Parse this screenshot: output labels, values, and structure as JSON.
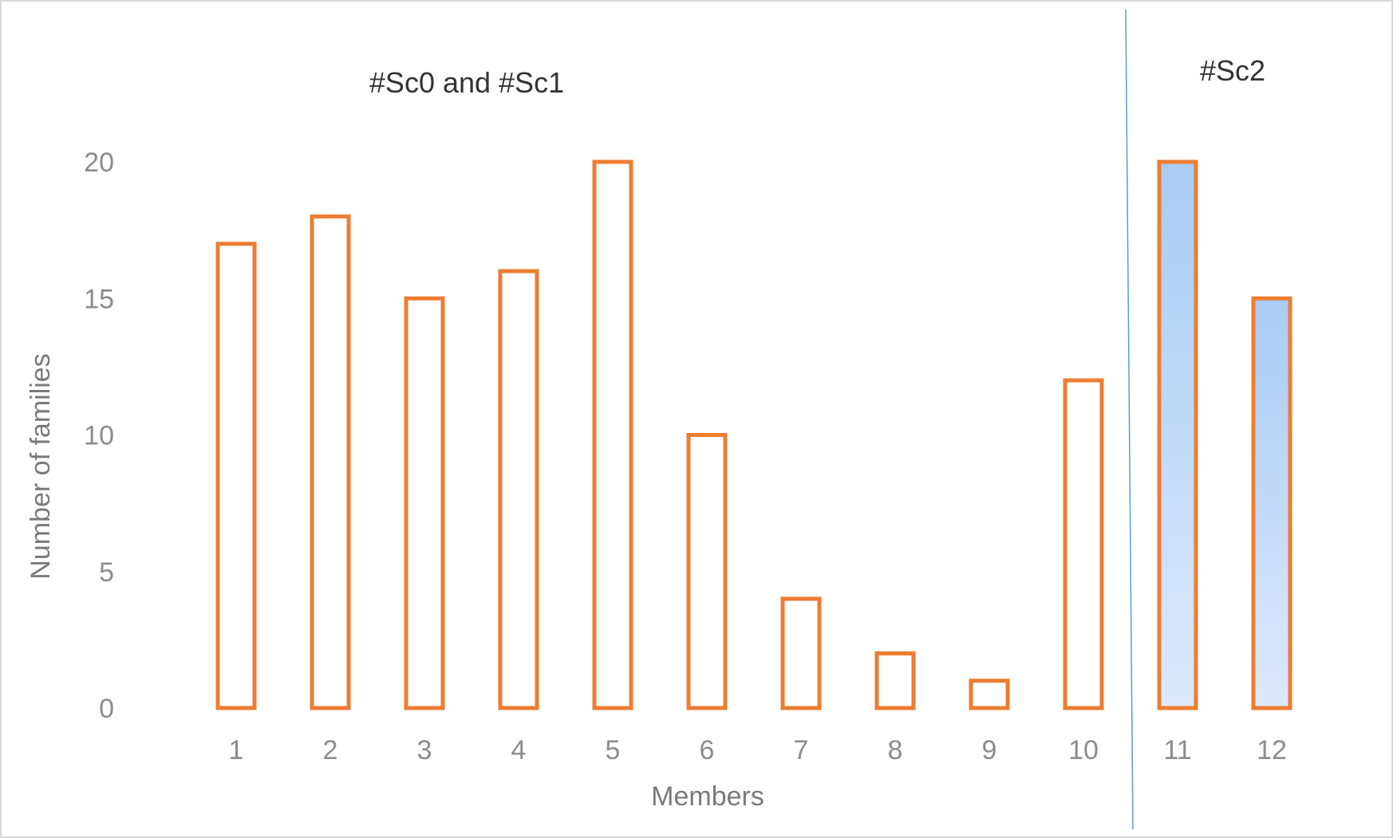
{
  "chart_data": {
    "type": "bar",
    "categories": [
      "1",
      "2",
      "3",
      "4",
      "5",
      "6",
      "7",
      "8",
      "9",
      "10",
      "11",
      "12"
    ],
    "values": [
      17,
      18,
      15,
      16,
      20,
      10,
      4,
      2,
      1,
      12,
      20,
      15
    ],
    "xlabel": "Members",
    "ylabel": "Number of families",
    "ylim": [
      0,
      20
    ],
    "yticks": [
      "0",
      "5",
      "10",
      "15",
      "20"
    ],
    "grid": false,
    "legend": "none",
    "annotations": {
      "left_region": "#Sc0 and #Sc1",
      "right_region": "#Sc2"
    },
    "highlighted_categories": [
      "11",
      "12"
    ],
    "colors": {
      "bar_outline": "#ed7d31",
      "bar_fill_highlight_top": "#a9cbf5",
      "bar_fill_highlight_bottom": "#dce9fb",
      "divider": "#5b9bd5",
      "frame": "#d9d9d9"
    }
  }
}
